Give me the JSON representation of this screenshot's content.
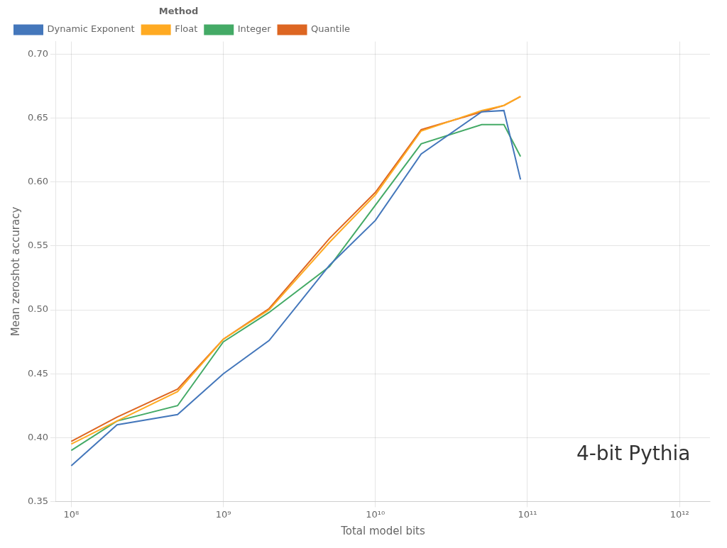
{
  "chart_data": {
    "type": "line",
    "title": "4-bit Pythia",
    "xlabel": "Total model bits",
    "ylabel": "Mean zeroshot accuracy",
    "legend_title": "Method",
    "log": "x",
    "grid": true,
    "legend": "upper left",
    "xlim": [
      79432823.47242814,
      1584893192461.1135
    ],
    "xticks": [
      {
        "value": 100000000,
        "label": "10⁸"
      },
      {
        "value": 1000000000,
        "label": "10⁹"
      },
      {
        "value": 10000000000,
        "label": "10¹⁰"
      },
      {
        "value": 100000000000,
        "label": "10¹¹"
      },
      {
        "value": 1000000000000,
        "label": "10¹²"
      }
    ],
    "ylim": [
      0.35,
      0.71
    ],
    "yticks": [
      0.35,
      {
        "value": 0.4,
        "label": "0.40"
      },
      0.45,
      {
        "value": 0.5,
        "label": "0.50"
      },
      0.55,
      {
        "value": 0.6,
        "label": "0.60"
      },
      0.65,
      {
        "value": 0.7,
        "label": "0.70"
      }
    ],
    "x": [
      100000000,
      200000000,
      500000000,
      1000000000,
      2000000000,
      5000000000,
      10000000000,
      20000000000,
      50000000000,
      70000000000,
      90000000000
    ],
    "series": [
      {
        "name": "Dynamic Exponent",
        "color": "#4477bb",
        "values": [
          0.378,
          0.41,
          0.418,
          0.45,
          0.476,
          0.535,
          0.57,
          0.622,
          0.655,
          0.656,
          0.602
        ]
      },
      {
        "name": "Float",
        "color": "#ffaa22",
        "values": [
          0.395,
          0.413,
          0.436,
          0.477,
          0.5,
          0.553,
          0.59,
          0.64,
          0.656,
          0.66,
          0.667
        ]
      },
      {
        "name": "Integer",
        "color": "#44aa66",
        "values": [
          0.39,
          0.413,
          0.425,
          0.475,
          0.498,
          0.534,
          0.582,
          0.63,
          0.645,
          0.645,
          0.62
        ]
      },
      {
        "name": "Quantile",
        "color": "#dd6622",
        "values": [
          0.397,
          0.416,
          0.438,
          0.477,
          0.501,
          0.556,
          0.592,
          0.641,
          0.655,
          0.66,
          0.667
        ]
      }
    ]
  }
}
